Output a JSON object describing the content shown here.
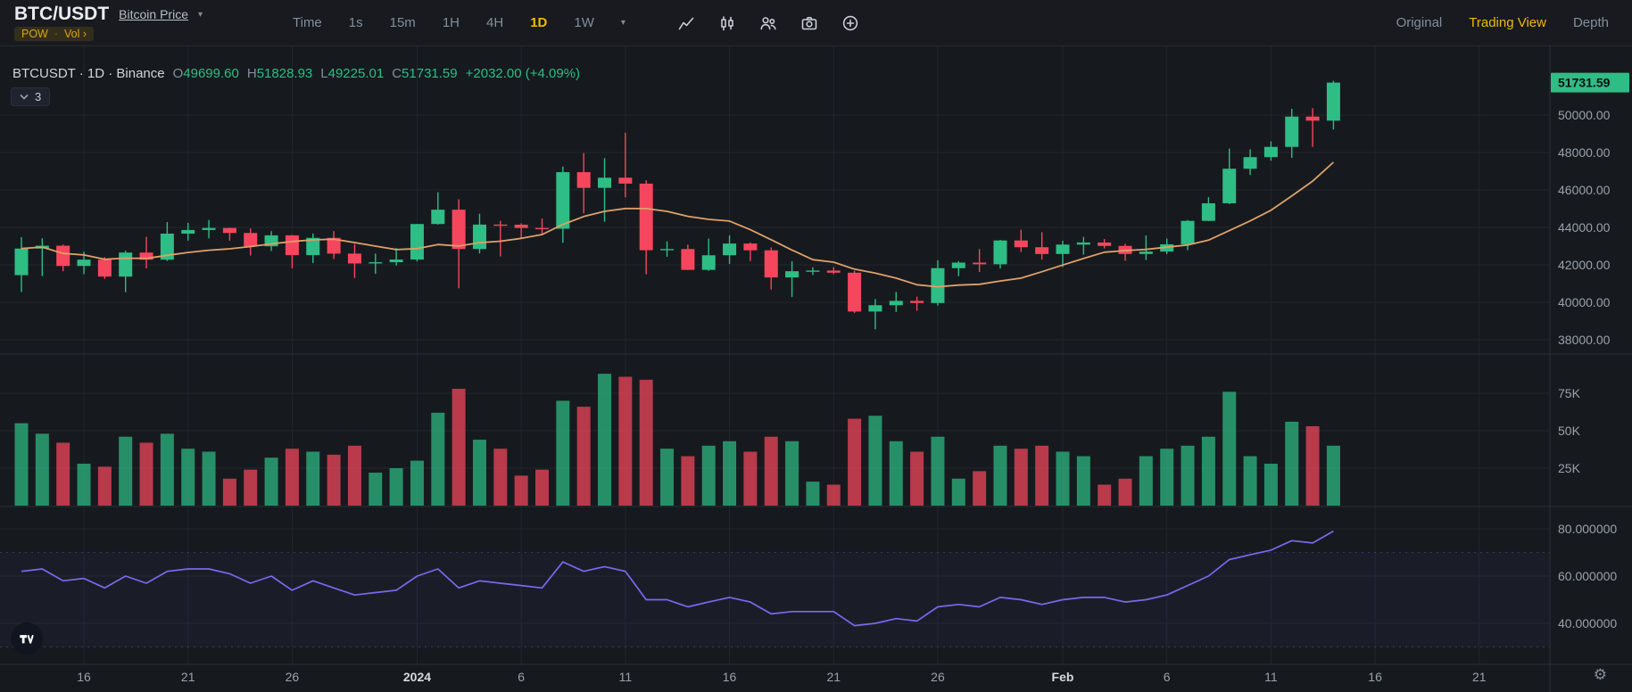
{
  "header": {
    "symbol": "BTC/USDT",
    "subtitle_link": "Bitcoin Price",
    "tags": {
      "pow": "POW",
      "separator": "·",
      "vol": "Vol ›"
    },
    "intervals": [
      "Time",
      "1s",
      "15m",
      "1H",
      "4H",
      "1D",
      "1W"
    ],
    "active_interval": "1D",
    "toolbar_icons": [
      "line-chart",
      "candlestick-chart",
      "compare",
      "camera",
      "add-indicator"
    ],
    "view_tabs": [
      "Original",
      "Trading View",
      "Depth"
    ],
    "active_view": "Trading View"
  },
  "legend": {
    "series": "BTCUSDT · 1D · Binance",
    "labels": {
      "o": "O",
      "h": "H",
      "l": "L",
      "c": "C"
    },
    "values": {
      "o": "49699.60",
      "h": "51828.93",
      "l": "49225.01",
      "c": "51731.59"
    },
    "change": "+2032.00 (+4.09%)",
    "collapse_count": "3"
  },
  "colors": {
    "background": "#161a1e",
    "up": "#2ebd85",
    "down": "#f6465d",
    "accent": "#f0b90b",
    "ma_line": "#dfa06a",
    "rsi_line": "#7b68ee",
    "grid": "#21252f",
    "separator": "#2a2e39",
    "axis_text": "#9aa1ad",
    "badge_bg": "#2ebd85",
    "badge_text": "#0b0e11"
  },
  "chart_data": {
    "type": "candlestick",
    "symbol": "BTCUSDT",
    "interval": "1D",
    "exchange": "Binance",
    "last_price": "51731.59",
    "price_axis_ticks": [
      "50000.00",
      "48000.00",
      "46000.00",
      "44000.00",
      "42000.00",
      "40000.00",
      "38000.00"
    ],
    "volume_axis_ticks": [
      "75K",
      "50K",
      "25K"
    ],
    "rsi_axis_ticks": [
      "80.000000",
      "60.000000",
      "40.000000"
    ],
    "time_ticks": [
      {
        "i": 3,
        "label": "16"
      },
      {
        "i": 8,
        "label": "21"
      },
      {
        "i": 13,
        "label": "26"
      },
      {
        "i": 19,
        "label": "2024",
        "major": true
      },
      {
        "i": 24,
        "label": "6"
      },
      {
        "i": 29,
        "label": "11"
      },
      {
        "i": 34,
        "label": "16"
      },
      {
        "i": 39,
        "label": "21"
      },
      {
        "i": 44,
        "label": "26"
      },
      {
        "i": 50,
        "label": "Feb",
        "major": true
      },
      {
        "i": 55,
        "label": "6"
      },
      {
        "i": 60,
        "label": "11"
      },
      {
        "i": 65,
        "label": "16"
      },
      {
        "i": 70,
        "label": "21"
      }
    ],
    "ma_period": 9,
    "columns": [
      "date",
      "open",
      "high",
      "low",
      "close",
      "volume_k",
      "rsi"
    ],
    "candles": [
      [
        "Dec 13",
        41450,
        43475,
        40555,
        42870,
        55,
        62
      ],
      [
        "Dec 14",
        42870,
        43420,
        41400,
        43022,
        48,
        63
      ],
      [
        "Dec 15",
        43022,
        43080,
        41660,
        41940,
        42,
        58
      ],
      [
        "Dec 16",
        41940,
        42700,
        41500,
        42278,
        28,
        59
      ],
      [
        "Dec 17",
        42278,
        42410,
        41252,
        41374,
        26,
        55
      ],
      [
        "Dec 18",
        41374,
        42750,
        40542,
        42657,
        46,
        60
      ],
      [
        "Dec 19",
        42657,
        43497,
        41811,
        42275,
        42,
        57
      ],
      [
        "Dec 20",
        42275,
        44283,
        42206,
        43668,
        48,
        62
      ],
      [
        "Dec 21",
        43668,
        44242,
        43291,
        43861,
        38,
        63
      ],
      [
        "Dec 22",
        43861,
        44400,
        43414,
        43969,
        36,
        63
      ],
      [
        "Dec 23",
        43969,
        43985,
        43291,
        43702,
        18,
        61
      ],
      [
        "Dec 24",
        43702,
        43945,
        42500,
        42991,
        24,
        57
      ],
      [
        "Dec 25",
        42991,
        43804,
        42740,
        43576,
        32,
        60
      ],
      [
        "Dec 26",
        43576,
        43592,
        41811,
        42520,
        38,
        54
      ],
      [
        "Dec 27",
        42520,
        43677,
        42098,
        43442,
        36,
        58
      ],
      [
        "Dec 28",
        43442,
        43804,
        42317,
        42600,
        34,
        55
      ],
      [
        "Dec 29",
        42600,
        43111,
        41300,
        42074,
        40,
        52
      ],
      [
        "Dec 30",
        42074,
        42600,
        41520,
        42141,
        22,
        53
      ],
      [
        "Dec 31",
        42141,
        42900,
        41965,
        42283,
        25,
        54
      ],
      [
        "Jan 1",
        42283,
        44184,
        42180,
        44179,
        30,
        60
      ],
      [
        "Jan 2",
        44179,
        45879,
        44148,
        44946,
        62,
        63
      ],
      [
        "Jan 3",
        44946,
        45500,
        40750,
        42845,
        78,
        55
      ],
      [
        "Jan 4",
        42845,
        44729,
        42613,
        44151,
        44,
        58
      ],
      [
        "Jan 5",
        44151,
        44357,
        42450,
        44145,
        38,
        57
      ],
      [
        "Jan 6",
        44145,
        44214,
        43398,
        43968,
        20,
        56
      ],
      [
        "Jan 7",
        43968,
        44480,
        43572,
        43929,
        24,
        55
      ],
      [
        "Jan 8",
        43929,
        47248,
        43175,
        46951,
        70,
        66
      ],
      [
        "Jan 9",
        46951,
        47972,
        44748,
        46110,
        66,
        62
      ],
      [
        "Jan 10",
        46110,
        47695,
        44300,
        46653,
        88,
        64
      ],
      [
        "Jan 11",
        46653,
        49048,
        45606,
        46339,
        86,
        62
      ],
      [
        "Jan 12",
        46339,
        46515,
        41500,
        42782,
        84,
        50
      ],
      [
        "Jan 13",
        42782,
        43257,
        42436,
        42847,
        38,
        50
      ],
      [
        "Jan 14",
        42847,
        43079,
        41720,
        41732,
        33,
        47
      ],
      [
        "Jan 15",
        41732,
        43400,
        41680,
        42511,
        40,
        49
      ],
      [
        "Jan 16",
        42511,
        43578,
        42050,
        43137,
        43,
        51
      ],
      [
        "Jan 17",
        43137,
        43198,
        42200,
        42776,
        36,
        49
      ],
      [
        "Jan 18",
        42776,
        42930,
        40683,
        41327,
        46,
        44
      ],
      [
        "Jan 19",
        41327,
        42196,
        40280,
        41659,
        43,
        45
      ],
      [
        "Jan 20",
        41659,
        41872,
        41456,
        41696,
        16,
        45
      ],
      [
        "Jan 21",
        41696,
        41881,
        41500,
        41580,
        14,
        45
      ],
      [
        "Jan 22",
        41580,
        41689,
        39431,
        39507,
        58,
        39
      ],
      [
        "Jan 23",
        39507,
        40176,
        38555,
        39845,
        60,
        40
      ],
      [
        "Jan 24",
        39845,
        40555,
        39484,
        40077,
        43,
        42
      ],
      [
        "Jan 25",
        40077,
        40300,
        39550,
        39961,
        36,
        41
      ],
      [
        "Jan 26",
        39961,
        42246,
        39822,
        41823,
        46,
        47
      ],
      [
        "Jan 27",
        41823,
        42200,
        41394,
        42120,
        18,
        48
      ],
      [
        "Jan 28",
        42120,
        42842,
        41620,
        42031,
        23,
        47
      ],
      [
        "Jan 29",
        42031,
        43333,
        41804,
        43302,
        40,
        51
      ],
      [
        "Jan 30",
        43302,
        43882,
        42683,
        42941,
        38,
        50
      ],
      [
        "Jan 31",
        42941,
        43745,
        42276,
        42580,
        40,
        48
      ],
      [
        "Feb 1",
        42580,
        43285,
        41884,
        43082,
        36,
        50
      ],
      [
        "Feb 2",
        43082,
        43488,
        42546,
        43194,
        33,
        51
      ],
      [
        "Feb 3",
        43194,
        43380,
        42880,
        43011,
        14,
        51
      ],
      [
        "Feb 4",
        43011,
        43119,
        42222,
        42582,
        18,
        49
      ],
      [
        "Feb 5",
        42582,
        43569,
        42258,
        42708,
        33,
        50
      ],
      [
        "Feb 6",
        42708,
        43399,
        42574,
        43098,
        38,
        52
      ],
      [
        "Feb 7",
        43098,
        44396,
        42788,
        44349,
        40,
        56
      ],
      [
        "Feb 8",
        44349,
        45614,
        44331,
        45288,
        46,
        60
      ],
      [
        "Feb 9",
        45288,
        48200,
        45242,
        47132,
        76,
        67
      ],
      [
        "Feb 10",
        47132,
        48170,
        46800,
        47751,
        33,
        69
      ],
      [
        "Feb 11",
        47751,
        48592,
        47557,
        48299,
        28,
        71
      ],
      [
        "Feb 12",
        48299,
        50334,
        47710,
        49917,
        56,
        75
      ],
      [
        "Feb 13",
        49917,
        50368,
        48300,
        49699,
        53,
        74
      ],
      [
        "Feb 14",
        49699.6,
        51828.93,
        49225.01,
        51731.59,
        40,
        79
      ]
    ]
  }
}
